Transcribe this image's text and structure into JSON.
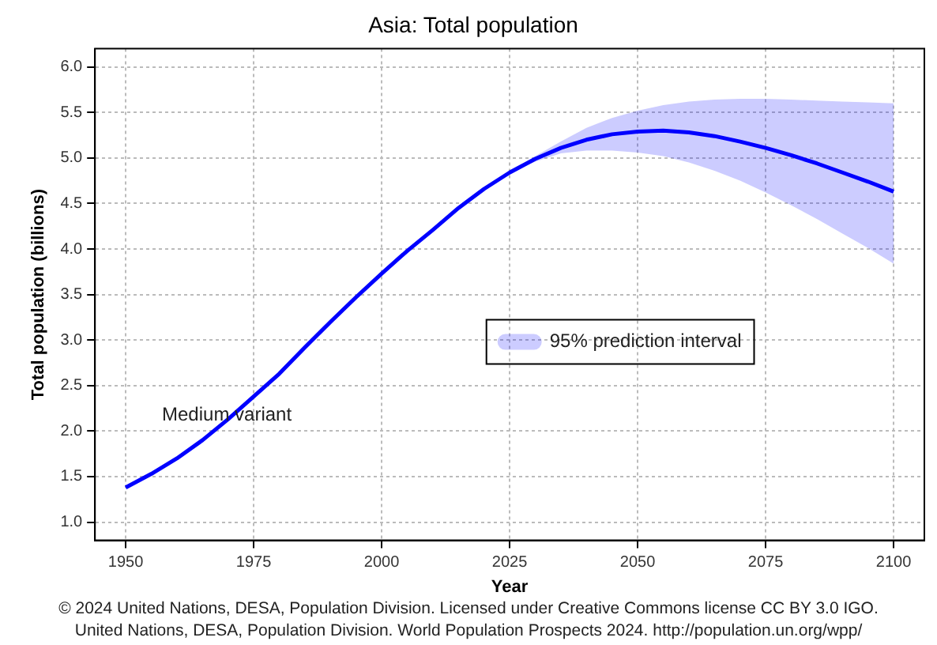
{
  "chart_data": {
    "type": "line",
    "title": "Asia: Total population",
    "xlabel": "Year",
    "ylabel": "Total population (billions)",
    "xlim": [
      1944,
      2106
    ],
    "xticks": [
      1950,
      1975,
      2000,
      2025,
      2050,
      2075,
      2100
    ],
    "ylim": [
      0.8,
      6.2
    ],
    "yticks": [
      {
        "value": 1,
        "label": "1.0"
      },
      1.5,
      {
        "value": 2,
        "label": "2.0"
      },
      2.5,
      {
        "value": 3,
        "label": "3.0"
      },
      3.5,
      {
        "value": 4,
        "label": "4.0"
      },
      4.5,
      {
        "value": 5,
        "label": "5.0"
      },
      5.5,
      {
        "value": 6,
        "label": "6.0"
      }
    ],
    "grid": true,
    "legend": "center",
    "legend_title": "95% prediction interval",
    "marker": "none",
    "line_style": "solid",
    "series": [
      {
        "name": "Medium variant",
        "color": "#0000ff",
        "x": [
          1950,
          1955,
          1960,
          1965,
          1970,
          1975,
          1980,
          1985,
          1990,
          1995,
          2000,
          2005,
          2010,
          2015,
          2020,
          2025,
          2030,
          2035,
          2040,
          2045,
          2050,
          2055,
          2060,
          2065,
          2070,
          2075,
          2080,
          2085,
          2090,
          2095,
          2100
        ],
        "values": [
          1.38,
          1.53,
          1.7,
          1.9,
          2.13,
          2.38,
          2.63,
          2.92,
          3.2,
          3.47,
          3.73,
          3.98,
          4.21,
          4.45,
          4.66,
          4.84,
          4.99,
          5.11,
          5.2,
          5.26,
          5.29,
          5.3,
          5.28,
          5.24,
          5.18,
          5.11,
          5.03,
          4.94,
          4.84,
          4.74,
          4.63
        ],
        "lower": [
          null,
          null,
          null,
          null,
          null,
          null,
          null,
          null,
          null,
          null,
          null,
          null,
          null,
          null,
          null,
          4.84,
          4.96,
          5.05,
          5.08,
          5.08,
          5.06,
          5.02,
          4.95,
          4.86,
          4.75,
          4.62,
          4.48,
          4.33,
          4.17,
          4.01,
          3.84
        ],
        "upper": [
          null,
          null,
          null,
          null,
          null,
          null,
          null,
          null,
          null,
          null,
          null,
          null,
          null,
          null,
          null,
          4.84,
          5.02,
          5.18,
          5.33,
          5.44,
          5.52,
          5.58,
          5.62,
          5.64,
          5.65,
          5.65,
          5.64,
          5.63,
          5.62,
          5.61,
          5.6
        ]
      }
    ],
    "annotations": [
      "© 2024 United Nations, DESA, Population Division. Licensed under Creative Commons license CC BY 3.0 IGO.",
      "United Nations, DESA, Population Division. World Population Prospects 2024. http://population.un.org/wpp/"
    ]
  }
}
